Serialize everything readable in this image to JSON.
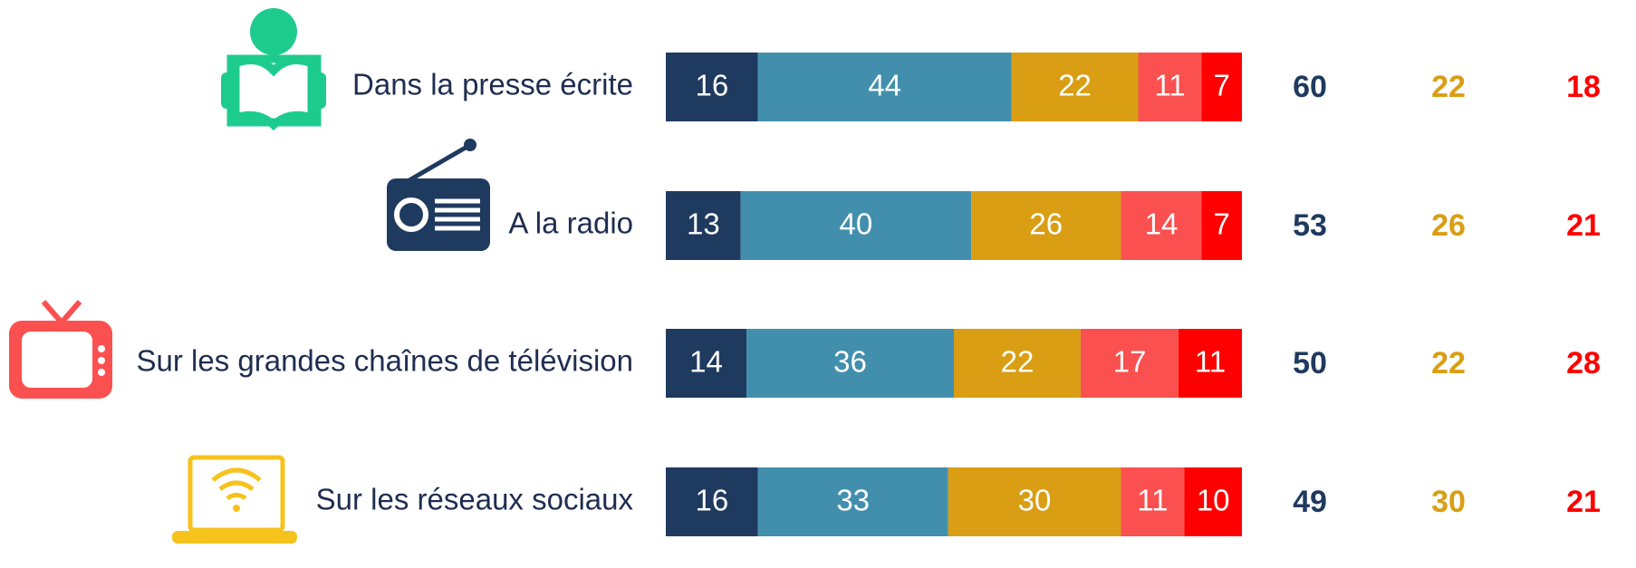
{
  "chart_data": {
    "type": "stacked_bar_horizontal",
    "categories": [
      "Dans la presse écrite",
      "A la radio",
      "Sur les grandes chaînes de télévision",
      "Sur les réseaux sociaux"
    ],
    "series": [
      {
        "color": "#1f3a5f",
        "values": [
          16,
          13,
          14,
          16
        ]
      },
      {
        "color": "#428fad",
        "values": [
          44,
          40,
          36,
          33
        ]
      },
      {
        "color": "#d99e13",
        "values": [
          22,
          26,
          22,
          30
        ]
      },
      {
        "color": "#fb5050",
        "values": [
          11,
          14,
          17,
          11
        ]
      },
      {
        "color": "#ff0000",
        "values": [
          7,
          7,
          11,
          10
        ]
      }
    ],
    "xlim": [
      0,
      100
    ],
    "totals": [
      {
        "color": "#1f3a5f",
        "values": [
          60,
          53,
          50,
          49
        ]
      },
      {
        "color": "#d99e13",
        "values": [
          22,
          26,
          22,
          30
        ]
      },
      {
        "color": "#ff0000",
        "values": [
          18,
          21,
          28,
          21
        ]
      }
    ]
  }
}
